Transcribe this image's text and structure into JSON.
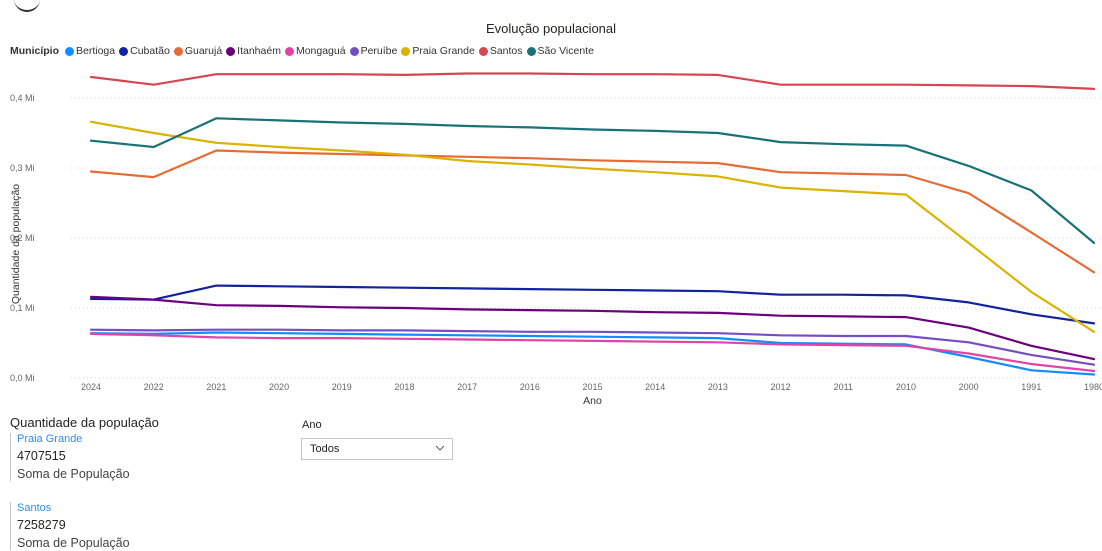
{
  "chart_data": {
    "type": "line",
    "title": "Evolução populacional",
    "legend_title": "Município",
    "legend_position": "top-left",
    "xlabel": "Ano",
    "ylabel": "Quantidade da população",
    "categories": [
      "2024",
      "2022",
      "2021",
      "2020",
      "2019",
      "2018",
      "2017",
      "2016",
      "2015",
      "2014",
      "2013",
      "2012",
      "2011",
      "2010",
      "2000",
      "1991",
      "1980"
    ],
    "y_ticks": [
      "0,0 Mi",
      "0,1 Mi",
      "0,2 Mi",
      "0,3 Mi",
      "0,4 Mi"
    ],
    "ylim": [
      0,
      0.45
    ],
    "grid": "horizontal dotted",
    "series": [
      {
        "name": "Bertioga",
        "color": "#118DFF",
        "values": [
          0.064,
          0.063,
          0.065,
          0.064,
          0.063,
          0.062,
          0.061,
          0.06,
          0.059,
          0.058,
          0.057,
          0.05,
          0.049,
          0.048,
          0.03,
          0.011,
          0.005
        ]
      },
      {
        "name": "Cubatão",
        "color": "#12239E",
        "values": [
          0.113,
          0.112,
          0.132,
          0.131,
          0.13,
          0.129,
          0.128,
          0.127,
          0.126,
          0.125,
          0.124,
          0.119,
          0.119,
          0.118,
          0.108,
          0.091,
          0.078
        ]
      },
      {
        "name": "Guarujá",
        "color": "#E66C37",
        "values": [
          0.295,
          0.287,
          0.325,
          0.322,
          0.32,
          0.318,
          0.316,
          0.314,
          0.311,
          0.309,
          0.307,
          0.294,
          0.292,
          0.29,
          0.264,
          0.208,
          0.151
        ]
      },
      {
        "name": "Itanhaém",
        "color": "#6B007B",
        "values": [
          0.116,
          0.112,
          0.104,
          0.103,
          0.101,
          0.1,
          0.098,
          0.097,
          0.096,
          0.094,
          0.093,
          0.089,
          0.088,
          0.087,
          0.072,
          0.046,
          0.027
        ]
      },
      {
        "name": "Mongaguá",
        "color": "#E044A7",
        "values": [
          0.063,
          0.061,
          0.058,
          0.057,
          0.057,
          0.056,
          0.055,
          0.054,
          0.053,
          0.052,
          0.051,
          0.048,
          0.047,
          0.046,
          0.035,
          0.02,
          0.01
        ]
      },
      {
        "name": "Peruíbe",
        "color": "#744EC2",
        "values": [
          0.069,
          0.068,
          0.069,
          0.069,
          0.068,
          0.068,
          0.067,
          0.066,
          0.066,
          0.065,
          0.064,
          0.061,
          0.06,
          0.06,
          0.051,
          0.033,
          0.019
        ]
      },
      {
        "name": "Praia Grande",
        "color": "#D9B300",
        "values": [
          0.366,
          0.35,
          0.336,
          0.33,
          0.325,
          0.319,
          0.31,
          0.305,
          0.299,
          0.294,
          0.288,
          0.272,
          0.267,
          0.262,
          0.193,
          0.123,
          0.066
        ]
      },
      {
        "name": "Santos",
        "color": "#D64550",
        "values": [
          0.43,
          0.419,
          0.434,
          0.434,
          0.434,
          0.433,
          0.435,
          0.435,
          0.434,
          0.434,
          0.433,
          0.419,
          0.419,
          0.419,
          0.418,
          0.417,
          0.413
        ]
      },
      {
        "name": "São Vicente",
        "color": "#197278",
        "values": [
          0.339,
          0.33,
          0.371,
          0.368,
          0.365,
          0.363,
          0.36,
          0.358,
          0.355,
          0.353,
          0.35,
          0.337,
          0.334,
          0.332,
          0.303,
          0.268,
          0.193
        ]
      }
    ]
  },
  "cards": {
    "title": "Quantidade da população",
    "items": [
      {
        "label": "Praia Grande",
        "value": "4707515",
        "sub": "Soma de População"
      },
      {
        "label": "Santos",
        "value": "7258279",
        "sub": "Soma de População"
      }
    ]
  },
  "slicer": {
    "title": "Ano",
    "selected": "Todos"
  }
}
